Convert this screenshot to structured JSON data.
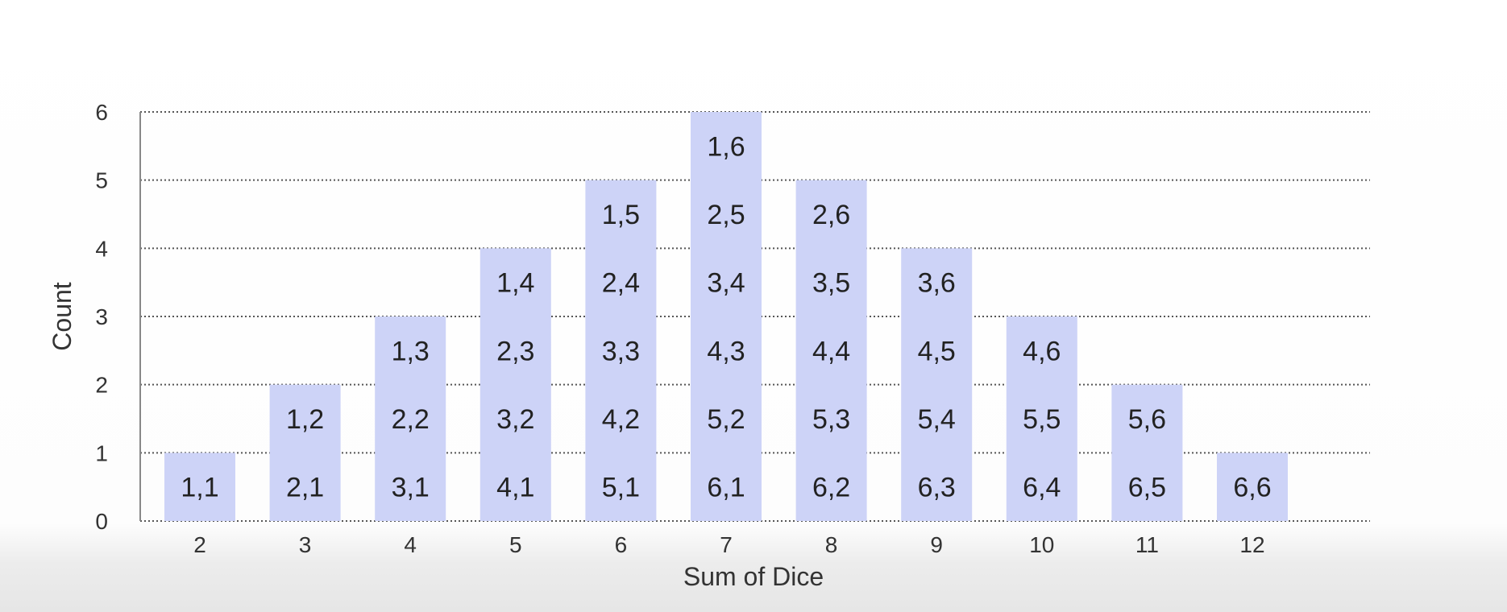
{
  "chart_data": {
    "type": "bar",
    "xlabel": "Sum of Dice",
    "ylabel": "Count",
    "ylim": [
      0,
      6
    ],
    "yticks": [
      0,
      1,
      2,
      3,
      4,
      5,
      6
    ],
    "grid": true,
    "bar_color": "#cdd3f7",
    "categories": [
      "2",
      "3",
      "4",
      "5",
      "6",
      "7",
      "8",
      "9",
      "10",
      "11",
      "12"
    ],
    "values": [
      1,
      2,
      3,
      4,
      5,
      6,
      5,
      4,
      3,
      2,
      1
    ],
    "cell_labels": [
      [
        "1,1"
      ],
      [
        "2,1",
        "1,2"
      ],
      [
        "3,1",
        "2,2",
        "1,3"
      ],
      [
        "4,1",
        "3,2",
        "2,3",
        "1,4"
      ],
      [
        "5,1",
        "4,2",
        "3,3",
        "2,4",
        "1,5"
      ],
      [
        "6,1",
        "5,2",
        "4,3",
        "3,4",
        "2,5",
        "1,6"
      ],
      [
        "6,2",
        "5,3",
        "4,4",
        "3,5",
        "2,6"
      ],
      [
        "6,3",
        "5,4",
        "4,5",
        "3,6"
      ],
      [
        "6,4",
        "5,5",
        "4,6"
      ],
      [
        "6,5",
        "5,6"
      ],
      [
        "6,6"
      ]
    ]
  }
}
